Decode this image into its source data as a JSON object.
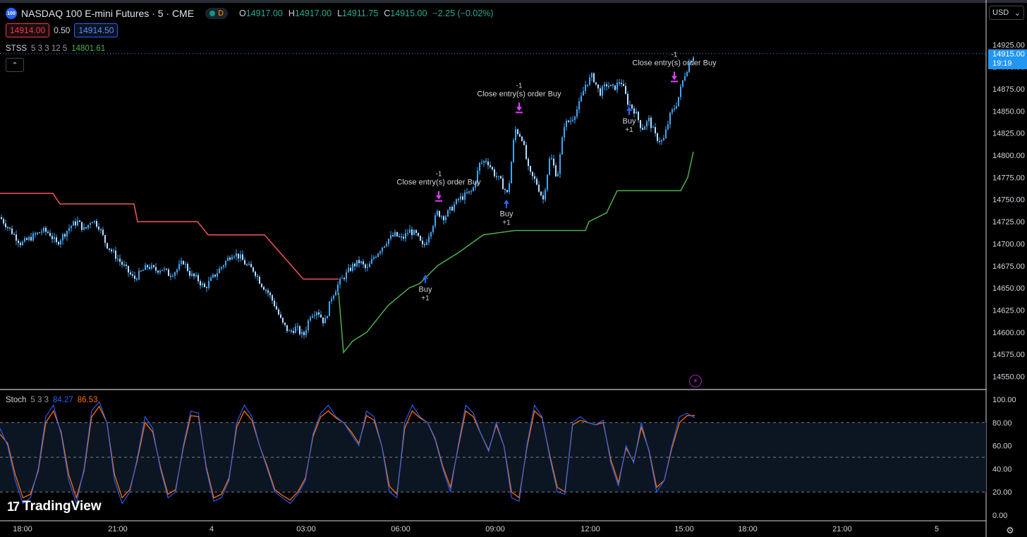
{
  "header": {
    "symbol_badge": "100",
    "title": "NASDAQ 100 E-mini Futures · 5 · CME",
    "status_chip": "D",
    "ohlc": {
      "o_label": "O",
      "o": "14917.00",
      "h_label": "H",
      "h": "14917.00",
      "l_label": "L",
      "l": "14911.75",
      "c_label": "C",
      "c": "14915.00",
      "change": "−2.25 (−0.02%)"
    }
  },
  "quote": {
    "bid": "14914.00",
    "spread": "0.50",
    "ask": "14914.50"
  },
  "indicators": {
    "stss": {
      "name": "STSS",
      "params": "5 3 3 12 5",
      "value": "14801.61"
    },
    "stoch": {
      "name": "Stoch",
      "params": "5 3 3",
      "k": "84.27",
      "d": "86.53"
    }
  },
  "currency": {
    "label": "USD",
    "chevron": "⌄"
  },
  "collapse_icon": "chevron-up-icon",
  "collapse_glyph": "⌃",
  "last_price": {
    "price": "14915.00",
    "countdown": "19:19"
  },
  "brand": {
    "mark": "17",
    "name": "TradingView"
  },
  "icons": {
    "gear": "⚙",
    "bolt": "⚡"
  },
  "colors": {
    "up": "#42a5f5",
    "down": "#42a5f5",
    "stss_red": "#f7525f",
    "stss_green": "#4caf50",
    "stoch_k": "#2962ff",
    "stoch_d": "#ff6d00",
    "marker": "#e040fb",
    "buy_arrow": "#2962ff",
    "text": "#d1d4dc"
  },
  "chart_data": [
    {
      "type": "candlestick",
      "y_ticks": [
        14550.0,
        14575.0,
        14600.0,
        14625.0,
        14650.0,
        14675.0,
        14700.0,
        14725.0,
        14750.0,
        14775.0,
        14800.0,
        14825.0,
        14850.0,
        14875.0,
        14900.0,
        14925.0
      ],
      "ylim": [
        14540,
        14950
      ],
      "x_ticks": [
        "18:00",
        "21:00",
        "4",
        "03:00",
        "06:00",
        "09:00",
        "12:00",
        "15:00",
        "18:00",
        "21:00",
        "5"
      ],
      "close_path": [
        [
          0,
          14730
        ],
        [
          10,
          14720
        ],
        [
          20,
          14710
        ],
        [
          30,
          14700
        ],
        [
          40,
          14705
        ],
        [
          50,
          14710
        ],
        [
          60,
          14715
        ],
        [
          70,
          14712
        ],
        [
          80,
          14700
        ],
        [
          90,
          14710
        ],
        [
          100,
          14720
        ],
        [
          110,
          14725
        ],
        [
          120,
          14715
        ],
        [
          130,
          14728
        ],
        [
          140,
          14720
        ],
        [
          150,
          14700
        ],
        [
          160,
          14690
        ],
        [
          170,
          14680
        ],
        [
          180,
          14670
        ],
        [
          190,
          14660
        ],
        [
          200,
          14668
        ],
        [
          210,
          14675
        ],
        [
          220,
          14670
        ],
        [
          230,
          14672
        ],
        [
          240,
          14665
        ],
        [
          250,
          14670
        ],
        [
          260,
          14680
        ],
        [
          270,
          14665
        ],
        [
          280,
          14660
        ],
        [
          290,
          14650
        ],
        [
          300,
          14660
        ],
        [
          310,
          14670
        ],
        [
          320,
          14680
        ],
        [
          330,
          14690
        ],
        [
          340,
          14685
        ],
        [
          350,
          14675
        ],
        [
          360,
          14670
        ],
        [
          370,
          14655
        ],
        [
          380,
          14645
        ],
        [
          390,
          14630
        ],
        [
          400,
          14610
        ],
        [
          410,
          14600
        ],
        [
          420,
          14605
        ],
        [
          430,
          14595
        ],
        [
          440,
          14620
        ],
        [
          450,
          14625
        ],
        [
          460,
          14610
        ],
        [
          470,
          14640
        ],
        [
          480,
          14655
        ],
        [
          490,
          14665
        ],
        [
          500,
          14675
        ],
        [
          510,
          14680
        ],
        [
          520,
          14670
        ],
        [
          530,
          14685
        ],
        [
          540,
          14695
        ],
        [
          550,
          14705
        ],
        [
          560,
          14710
        ],
        [
          570,
          14705
        ],
        [
          580,
          14715
        ],
        [
          590,
          14710
        ],
        [
          600,
          14695
        ],
        [
          610,
          14715
        ],
        [
          620,
          14735
        ],
        [
          630,
          14730
        ],
        [
          640,
          14740
        ],
        [
          650,
          14750
        ],
        [
          660,
          14755
        ],
        [
          670,
          14760
        ],
        [
          680,
          14790
        ],
        [
          690,
          14795
        ],
        [
          700,
          14780
        ],
        [
          710,
          14770
        ],
        [
          720,
          14755
        ],
        [
          730,
          14830
        ],
        [
          740,
          14820
        ],
        [
          750,
          14780
        ],
        [
          760,
          14770
        ],
        [
          770,
          14750
        ],
        [
          780,
          14800
        ],
        [
          790,
          14775
        ],
        [
          800,
          14835
        ],
        [
          810,
          14840
        ],
        [
          820,
          14855
        ],
        [
          830,
          14880
        ],
        [
          840,
          14890
        ],
        [
          850,
          14870
        ],
        [
          860,
          14880
        ],
        [
          870,
          14875
        ],
        [
          880,
          14885
        ],
        [
          890,
          14860
        ],
        [
          900,
          14850
        ],
        [
          910,
          14830
        ],
        [
          920,
          14840
        ],
        [
          930,
          14820
        ],
        [
          940,
          14815
        ],
        [
          950,
          14845
        ],
        [
          960,
          14860
        ],
        [
          970,
          14890
        ],
        [
          980,
          14910
        ],
        [
          985,
          14915
        ]
      ],
      "stss_red_line": [
        [
          0,
          14757
        ],
        [
          75,
          14757
        ],
        [
          85,
          14745
        ],
        [
          190,
          14745
        ],
        [
          195,
          14725
        ],
        [
          280,
          14725
        ],
        [
          295,
          14710
        ],
        [
          375,
          14710
        ],
        [
          430,
          14660
        ],
        [
          480,
          14660
        ]
      ],
      "stss_green_line": [
        [
          480,
          14645
        ],
        [
          487,
          14577
        ],
        [
          500,
          14590
        ],
        [
          520,
          14600
        ],
        [
          550,
          14630
        ],
        [
          580,
          14650
        ],
        [
          595,
          14655
        ],
        [
          620,
          14675
        ],
        [
          650,
          14690
        ],
        [
          685,
          14710
        ],
        [
          730,
          14715
        ],
        [
          830,
          14715
        ],
        [
          835,
          14725
        ],
        [
          860,
          14735
        ],
        [
          875,
          14760
        ],
        [
          965,
          14760
        ],
        [
          975,
          14775
        ],
        [
          983,
          14804
        ]
      ],
      "annotations": [
        {
          "type": "buy",
          "x": 603,
          "y": 14665,
          "label": "Buy",
          "qty": "+1"
        },
        {
          "type": "close",
          "x": 622,
          "y": 14750,
          "label": "Close entry(s) order Buy",
          "qty": "-1"
        },
        {
          "type": "buy",
          "x": 718,
          "y": 14750,
          "label": "Buy",
          "qty": "+1"
        },
        {
          "type": "close",
          "x": 736,
          "y": 14850,
          "label": "Close entry(s) order Buy",
          "qty": "-1"
        },
        {
          "type": "buy",
          "x": 892,
          "y": 14855,
          "label": "Buy",
          "qty": "+1"
        },
        {
          "type": "close",
          "x": 956,
          "y": 14885,
          "label": "Close entry(s) order Buy",
          "qty": "-1"
        }
      ]
    },
    {
      "type": "line",
      "name": "Stoch",
      "y_ticks": [
        0.0,
        20.0,
        40.0,
        60.0,
        80.0,
        100.0
      ],
      "ylim": [
        0,
        100
      ],
      "bands": [
        20,
        50,
        80
      ],
      "k_seed": [
        75,
        60,
        30,
        10,
        15,
        40,
        85,
        95,
        70,
        30,
        10,
        40,
        90,
        98,
        80,
        30,
        10,
        20,
        50,
        85,
        75,
        40,
        15,
        20,
        60,
        90,
        88,
        40,
        12,
        15,
        30,
        80,
        95,
        85,
        60,
        40,
        20,
        15,
        10,
        18,
        30,
        70,
        88,
        95,
        85,
        80,
        70,
        60,
        90,
        85,
        60,
        20,
        15,
        80,
        95,
        85,
        80,
        65,
        40,
        20,
        60,
        95,
        88,
        70,
        55,
        80,
        60,
        15,
        12,
        60,
        95,
        85,
        50,
        20,
        18,
        80,
        85,
        80,
        78,
        82,
        45,
        25,
        60,
        45,
        80,
        55,
        20,
        30,
        60,
        85,
        88,
        84
      ],
      "d_seed": [
        70,
        62,
        35,
        15,
        18,
        38,
        80,
        90,
        72,
        35,
        15,
        38,
        85,
        94,
        80,
        35,
        15,
        22,
        48,
        80,
        72,
        42,
        18,
        22,
        58,
        86,
        85,
        42,
        15,
        18,
        32,
        76,
        90,
        82,
        60,
        42,
        22,
        17,
        13,
        20,
        32,
        68,
        85,
        90,
        84,
        80,
        72,
        62,
        86,
        82,
        60,
        25,
        18,
        75,
        90,
        84,
        80,
        66,
        42,
        24,
        58,
        90,
        85,
        70,
        56,
        78,
        60,
        20,
        15,
        58,
        90,
        84,
        52,
        24,
        20,
        78,
        82,
        80,
        78,
        80,
        48,
        28,
        58,
        46,
        76,
        56,
        24,
        30,
        58,
        80,
        86,
        86
      ]
    }
  ]
}
